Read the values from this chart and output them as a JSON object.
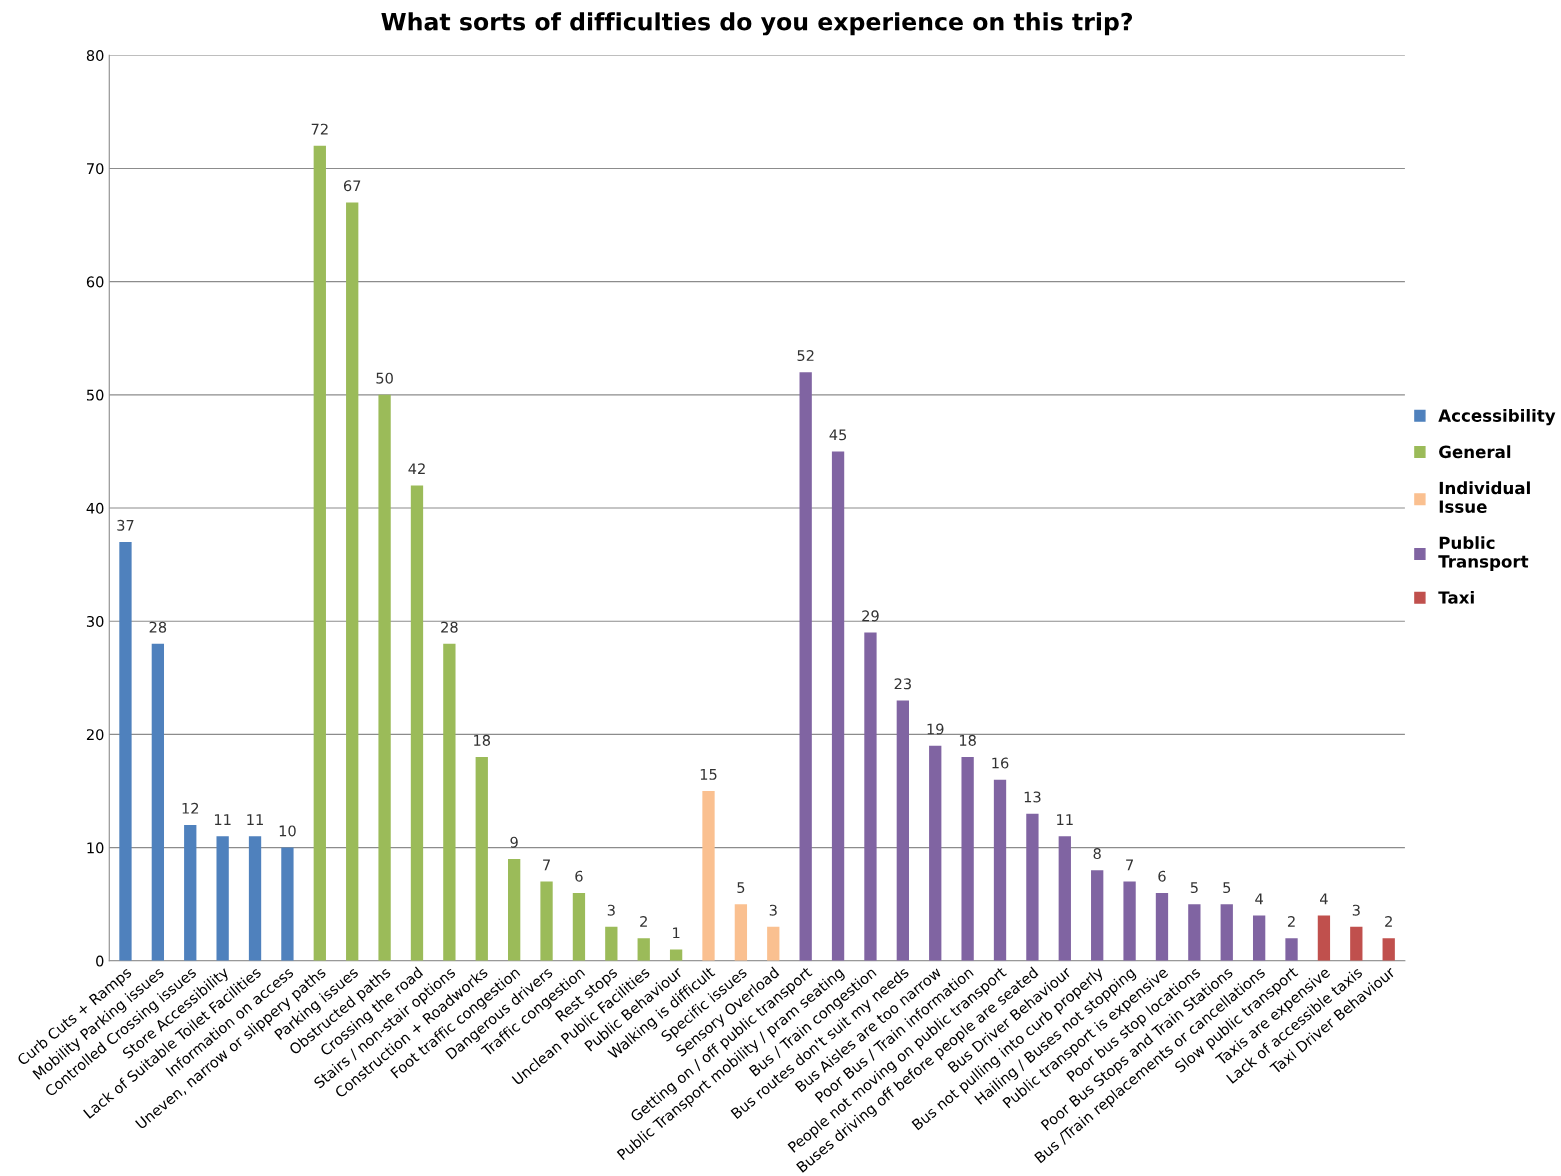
{
  "chart_data": {
    "type": "bar",
    "title": "What sorts of difficulties do you experience on this trip?",
    "categories": [
      "Curb Cuts + Ramps",
      "Mobility Parking issues",
      "Controlled Crossing issues",
      "Store Accessibility",
      "Lack of Suitable Toilet Facilities",
      "Information on access",
      "Uneven, narrow or slippery paths",
      "Parking issues",
      "Obstructed paths",
      "Crossing the road",
      "Stairs / non-stair options",
      "Construction + Roadworks",
      "Foot traffic congestion",
      "Dangerous drivers",
      "Traffic congestion",
      "Rest stops",
      "Unclean Public Facilities",
      "Public Behaviour",
      "Walking is difficult",
      "Specific issues",
      "Sensory Overload",
      "Getting on / off public transport",
      "Public Transport mobility / pram seating",
      "Bus / Train congestion",
      "Bus routes don't suit my needs",
      "Bus Aisles are too narrow",
      "Poor Bus / Train information",
      "People not moving on public transport",
      "Buses driving off before people are seated",
      "Bus Driver Behaviour",
      "Bus not pulling into curb properly",
      "Hailing / Buses not stopping",
      "Public transport is expensive",
      "Poor bus stop locations",
      "Poor Bus Stops and Train Stations",
      "Bus /Train replacements or cancellations",
      "Slow public transport",
      "Taxis are expensive",
      "Lack of accessible taxis",
      "Taxi Driver Behaviour"
    ],
    "series": [
      {
        "name": "Accessibility",
        "color": "#4f81bd",
        "values": [
          37,
          28,
          12,
          11,
          11,
          10,
          null,
          null,
          null,
          null,
          null,
          null,
          null,
          null,
          null,
          null,
          null,
          null,
          null,
          null,
          null,
          null,
          null,
          null,
          null,
          null,
          null,
          null,
          null,
          null,
          null,
          null,
          null,
          null,
          null,
          null,
          null,
          null,
          null,
          null
        ]
      },
      {
        "name": "General",
        "color": "#9bbb59",
        "values": [
          null,
          null,
          null,
          null,
          null,
          null,
          72,
          67,
          50,
          42,
          28,
          18,
          9,
          7,
          6,
          3,
          2,
          1,
          null,
          null,
          null,
          null,
          null,
          null,
          null,
          null,
          null,
          null,
          null,
          null,
          null,
          null,
          null,
          null,
          null,
          null,
          null,
          null,
          null,
          null
        ]
      },
      {
        "name": "Individual\nIssue",
        "color": "#fac090",
        "values": [
          null,
          null,
          null,
          null,
          null,
          null,
          null,
          null,
          null,
          null,
          null,
          null,
          null,
          null,
          null,
          null,
          null,
          null,
          15,
          5,
          3,
          null,
          null,
          null,
          null,
          null,
          null,
          null,
          null,
          null,
          null,
          null,
          null,
          null,
          null,
          null,
          null,
          null,
          null,
          null
        ]
      },
      {
        "name": "Public\nTransport",
        "color": "#8064a2",
        "values": [
          null,
          null,
          null,
          null,
          null,
          null,
          null,
          null,
          null,
          null,
          null,
          null,
          null,
          null,
          null,
          null,
          null,
          null,
          null,
          null,
          null,
          52,
          45,
          29,
          23,
          19,
          18,
          16,
          13,
          11,
          8,
          7,
          6,
          5,
          5,
          4,
          2,
          null,
          null,
          null
        ]
      },
      {
        "name": "Taxi",
        "color": "#c0504d",
        "values": [
          null,
          null,
          null,
          null,
          null,
          null,
          null,
          null,
          null,
          null,
          null,
          null,
          null,
          null,
          null,
          null,
          null,
          null,
          null,
          null,
          null,
          null,
          null,
          null,
          null,
          null,
          null,
          null,
          null,
          null,
          null,
          null,
          null,
          null,
          null,
          null,
          null,
          4,
          3,
          2
        ]
      }
    ],
    "ylim": [
      0,
      80
    ],
    "yticks": [
      0,
      10,
      20,
      30,
      40,
      50,
      60,
      70,
      80
    ],
    "grid": "y",
    "legend": "right",
    "data_labels": true
  }
}
